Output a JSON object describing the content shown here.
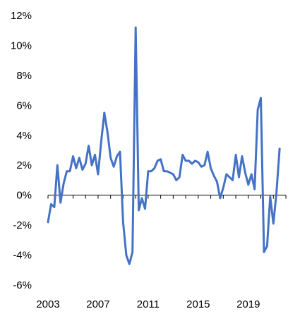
{
  "chart_data": {
    "type": "line",
    "title": "",
    "xlabel": "",
    "ylabel": "",
    "ylim": [
      -6,
      12
    ],
    "xlim": [
      2003,
      2022
    ],
    "y_ticks": [
      {
        "value": 12,
        "label": "12%"
      },
      {
        "value": 10,
        "label": "10%"
      },
      {
        "value": 8,
        "label": "8%"
      },
      {
        "value": 6,
        "label": "6%"
      },
      {
        "value": 4,
        "label": "4%"
      },
      {
        "value": 2,
        "label": "2%"
      },
      {
        "value": 0,
        "label": "0%"
      },
      {
        "value": -2,
        "label": "-2%"
      },
      {
        "value": -4,
        "label": "-4%"
      },
      {
        "value": -6,
        "label": "-6%"
      }
    ],
    "x_ticks": [
      {
        "value": 2003,
        "label": "2003"
      },
      {
        "value": 2007,
        "label": "2007"
      },
      {
        "value": 2011,
        "label": "2011"
      },
      {
        "value": 2015,
        "label": "2015"
      },
      {
        "value": 2019,
        "label": "2019"
      }
    ],
    "grid": false,
    "legend": "none",
    "line_color": "#4472C4",
    "series": [
      {
        "x": [
          2003.0,
          2003.25,
          2003.5,
          2003.75,
          2004.0,
          2004.25,
          2004.5,
          2004.75,
          2005.0,
          2005.25,
          2005.5,
          2005.75,
          2006.0,
          2006.25,
          2006.5,
          2006.75,
          2007.0,
          2007.25,
          2007.5,
          2007.75,
          2008.0,
          2008.25,
          2008.5,
          2008.75,
          2009.0,
          2009.25,
          2009.5,
          2009.75,
          2010.0,
          2010.25,
          2010.5,
          2010.75,
          2011.0,
          2011.25,
          2011.5,
          2011.75,
          2012.0,
          2012.25,
          2012.5,
          2012.75,
          2013.0,
          2013.25,
          2013.5,
          2013.75,
          2014.0,
          2014.25,
          2014.5,
          2014.75,
          2015.0,
          2015.25,
          2015.5,
          2015.75,
          2016.0,
          2016.25,
          2016.5,
          2016.75,
          2017.0,
          2017.25,
          2017.5,
          2017.75,
          2018.0,
          2018.25,
          2018.5,
          2018.75,
          2019.0,
          2019.25,
          2019.5,
          2019.75,
          2020.0,
          2020.25,
          2020.5,
          2020.75,
          2021.0,
          2021.25,
          2021.5,
          2021.75
        ],
        "values": [
          -1.8,
          -0.6,
          -0.8,
          2.0,
          -0.5,
          0.8,
          1.6,
          1.6,
          2.6,
          1.8,
          2.5,
          1.7,
          2.1,
          3.3,
          2.0,
          2.7,
          1.4,
          3.6,
          5.5,
          4.2,
          2.5,
          1.9,
          2.6,
          2.9,
          -1.8,
          -4.0,
          -4.6,
          -3.8,
          11.2,
          -1.0,
          -0.2,
          -0.9,
          1.6,
          1.6,
          1.8,
          2.3,
          2.4,
          1.6,
          1.6,
          1.5,
          1.4,
          1.0,
          1.2,
          2.7,
          2.3,
          2.3,
          2.1,
          2.3,
          2.2,
          1.9,
          2.0,
          2.9,
          1.8,
          1.3,
          0.9,
          -0.2,
          0.5,
          1.4,
          1.2,
          1.0,
          2.7,
          1.2,
          2.6,
          1.5,
          0.7,
          1.4,
          0.4,
          5.7,
          6.5,
          -3.8,
          -3.4,
          -0.1,
          -1.9,
          0.2,
          3.1,
          null
        ]
      }
    ]
  }
}
